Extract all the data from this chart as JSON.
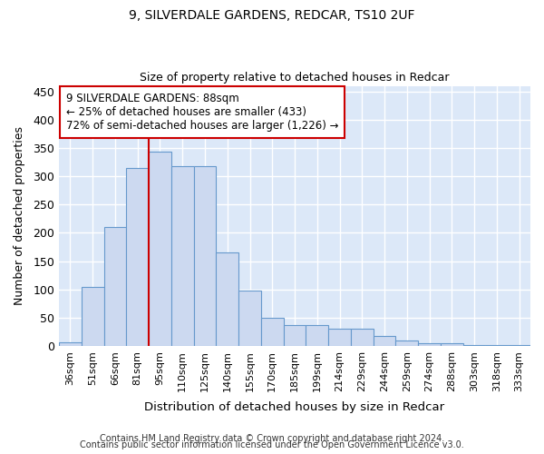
{
  "title1": "9, SILVERDALE GARDENS, REDCAR, TS10 2UF",
  "title2": "Size of property relative to detached houses in Redcar",
  "xlabel": "Distribution of detached houses by size in Redcar",
  "ylabel": "Number of detached properties",
  "categories": [
    "36sqm",
    "51sqm",
    "66sqm",
    "81sqm",
    "95sqm",
    "110sqm",
    "125sqm",
    "140sqm",
    "155sqm",
    "170sqm",
    "185sqm",
    "199sqm",
    "214sqm",
    "229sqm",
    "244sqm",
    "259sqm",
    "274sqm",
    "288sqm",
    "303sqm",
    "318sqm",
    "333sqm"
  ],
  "bar_heights": [
    7,
    105,
    210,
    315,
    343,
    318,
    318,
    166,
    98,
    50,
    36,
    36,
    30,
    30,
    17,
    9,
    5,
    5,
    2,
    2,
    1
  ],
  "bar_color": "#ccd9f0",
  "bar_edge_color": "#6699cc",
  "annotation_line1": "9 SILVERDALE GARDENS: 88sqm",
  "annotation_line2": "← 25% of detached houses are smaller (433)",
  "annotation_line3": "72% of semi-detached houses are larger (1,226) →",
  "annotation_box_facecolor": "#ffffff",
  "annotation_box_edgecolor": "#cc0000",
  "red_line_index": 4,
  "ylim": [
    0,
    460
  ],
  "yticks": [
    0,
    50,
    100,
    150,
    200,
    250,
    300,
    350,
    400,
    450
  ],
  "footer1": "Contains HM Land Registry data © Crown copyright and database right 2024.",
  "footer2": "Contains public sector information licensed under the Open Government Licence v3.0.",
  "plot_bg_color": "#dce8f8",
  "fig_bg_color": "#ffffff",
  "grid_color": "#ffffff"
}
